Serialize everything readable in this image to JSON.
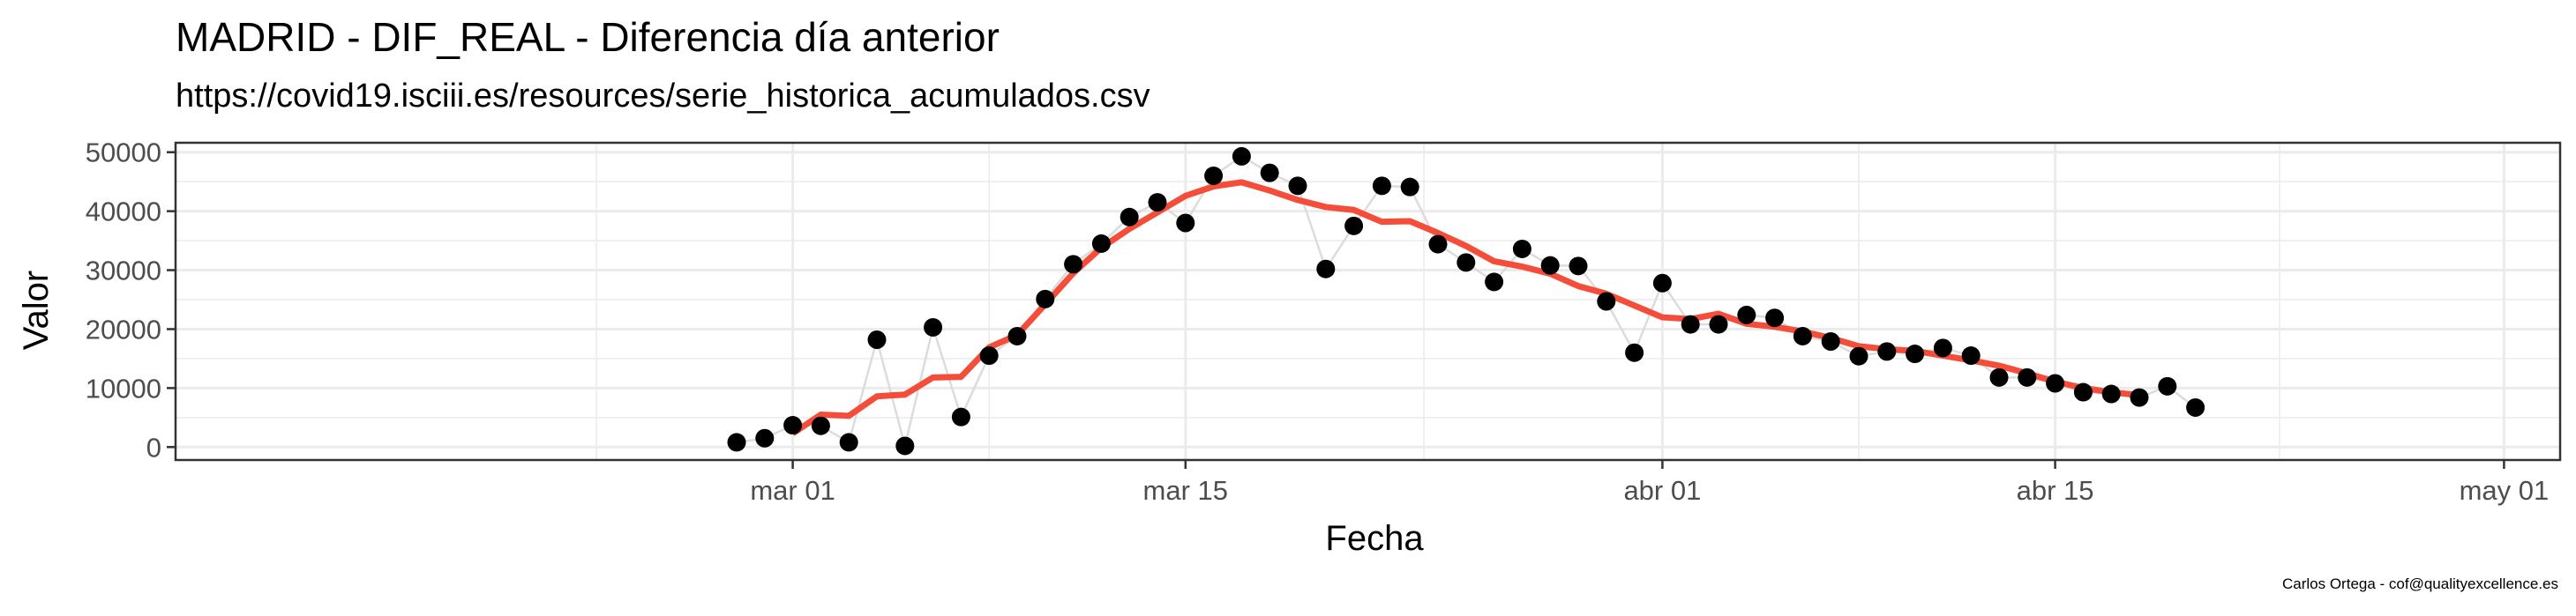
{
  "title": "MADRID - DIF_REAL - Diferencia día anterior",
  "subtitle": "https://covid19.isciii.es/resources/serie_historica_acumulados.csv",
  "caption": "Carlos Ortega - cof@qualityexcellence.es",
  "colors": {
    "points": "#000000",
    "connector": "#dcdcdc",
    "smooth": "#f44e3b",
    "grid": "#ebebeb",
    "panel_border": "#333333"
  },
  "chart_data": {
    "type": "line",
    "xlabel": "Fecha",
    "ylabel": "Valor",
    "x_ticks": [
      {
        "date": "2020-03-01",
        "label": "mar 01"
      },
      {
        "date": "2020-03-15",
        "label": "mar 15"
      },
      {
        "date": "2020-04-01",
        "label": "abr 01"
      },
      {
        "date": "2020-04-15",
        "label": "abr 15"
      },
      {
        "date": "2020-05-01",
        "label": "may 01"
      }
    ],
    "xlim": [
      "2020-02-08",
      "2020-05-03"
    ],
    "y_ticks": [
      {
        "value": 0,
        "label": "0"
      },
      {
        "value": 10000,
        "label": "10000"
      },
      {
        "value": 20000,
        "label": "20000"
      },
      {
        "value": 30000,
        "label": "30000"
      },
      {
        "value": 40000,
        "label": "40000"
      },
      {
        "value": 50000,
        "label": "50000"
      }
    ],
    "ylim": [
      -2200,
      51600
    ],
    "grid": true,
    "series": [
      {
        "kind": "points",
        "points": [
          [
            "2020-02-28",
            800
          ],
          [
            "2020-02-29",
            1500
          ],
          [
            "2020-03-01",
            3700
          ],
          [
            "2020-03-02",
            3600
          ],
          [
            "2020-03-03",
            800
          ],
          [
            "2020-03-04",
            18200
          ],
          [
            "2020-03-05",
            200
          ],
          [
            "2020-03-06",
            20300
          ],
          [
            "2020-03-07",
            5100
          ],
          [
            "2020-03-08",
            15500
          ],
          [
            "2020-03-09",
            18800
          ],
          [
            "2020-03-10",
            25100
          ],
          [
            "2020-03-11",
            31000
          ],
          [
            "2020-03-12",
            34500
          ],
          [
            "2020-03-13",
            39000
          ],
          [
            "2020-03-14",
            41500
          ],
          [
            "2020-03-15",
            38000
          ],
          [
            "2020-03-16",
            46000
          ],
          [
            "2020-03-17",
            49300
          ],
          [
            "2020-03-18",
            46500
          ],
          [
            "2020-03-19",
            44300
          ],
          [
            "2020-03-20",
            30200
          ],
          [
            "2020-03-21",
            37500
          ],
          [
            "2020-03-22",
            44300
          ],
          [
            "2020-03-23",
            44100
          ],
          [
            "2020-03-24",
            34400
          ],
          [
            "2020-03-25",
            31300
          ],
          [
            "2020-03-26",
            28000
          ],
          [
            "2020-03-27",
            33600
          ],
          [
            "2020-03-28",
            30800
          ],
          [
            "2020-03-29",
            30700
          ],
          [
            "2020-03-30",
            24700
          ],
          [
            "2020-03-31",
            16000
          ],
          [
            "2020-04-01",
            27800
          ],
          [
            "2020-04-02",
            20800
          ],
          [
            "2020-04-03",
            20800
          ],
          [
            "2020-04-04",
            22400
          ],
          [
            "2020-04-05",
            21900
          ],
          [
            "2020-04-06",
            18800
          ],
          [
            "2020-04-07",
            17900
          ],
          [
            "2020-04-08",
            15400
          ],
          [
            "2020-04-09",
            16200
          ],
          [
            "2020-04-10",
            15800
          ],
          [
            "2020-04-11",
            16800
          ],
          [
            "2020-04-12",
            15500
          ],
          [
            "2020-04-13",
            11800
          ],
          [
            "2020-04-14",
            11800
          ],
          [
            "2020-04-15",
            10800
          ],
          [
            "2020-04-16",
            9300
          ],
          [
            "2020-04-17",
            9000
          ],
          [
            "2020-04-18",
            8400
          ],
          [
            "2020-04-19",
            10300
          ],
          [
            "2020-04-20",
            6700
          ]
        ]
      },
      {
        "kind": "smooth",
        "points": [
          [
            "2020-03-01",
            2300
          ],
          [
            "2020-03-02",
            5500
          ],
          [
            "2020-03-03",
            5300
          ],
          [
            "2020-03-04",
            8600
          ],
          [
            "2020-03-05",
            8900
          ],
          [
            "2020-03-06",
            11800
          ],
          [
            "2020-03-07",
            11900
          ],
          [
            "2020-03-08",
            16900
          ],
          [
            "2020-03-09",
            19000
          ],
          [
            "2020-03-10",
            24200
          ],
          [
            "2020-03-11",
            29500
          ],
          [
            "2020-03-12",
            33800
          ],
          [
            "2020-03-13",
            37000
          ],
          [
            "2020-03-14",
            39800
          ],
          [
            "2020-03-15",
            42600
          ],
          [
            "2020-03-16",
            44200
          ],
          [
            "2020-03-17",
            44900
          ],
          [
            "2020-03-18",
            43500
          ],
          [
            "2020-03-19",
            41900
          ],
          [
            "2020-03-20",
            40700
          ],
          [
            "2020-03-21",
            40200
          ],
          [
            "2020-03-22",
            38200
          ],
          [
            "2020-03-23",
            38300
          ],
          [
            "2020-03-24",
            36300
          ],
          [
            "2020-03-25",
            34100
          ],
          [
            "2020-03-26",
            31500
          ],
          [
            "2020-03-27",
            30600
          ],
          [
            "2020-03-28",
            29400
          ],
          [
            "2020-03-29",
            27300
          ],
          [
            "2020-03-30",
            26000
          ],
          [
            "2020-03-31",
            24000
          ],
          [
            "2020-04-01",
            22000
          ],
          [
            "2020-04-02",
            21700
          ],
          [
            "2020-04-03",
            22600
          ],
          [
            "2020-04-04",
            20900
          ],
          [
            "2020-04-05",
            20400
          ],
          [
            "2020-04-06",
            19600
          ],
          [
            "2020-04-07",
            18500
          ],
          [
            "2020-04-08",
            17100
          ],
          [
            "2020-04-09",
            16600
          ],
          [
            "2020-04-10",
            16300
          ],
          [
            "2020-04-11",
            15500
          ],
          [
            "2020-04-12",
            14700
          ],
          [
            "2020-04-13",
            13800
          ],
          [
            "2020-04-14",
            12500
          ],
          [
            "2020-04-15",
            11100
          ],
          [
            "2020-04-16",
            10000
          ],
          [
            "2020-04-17",
            9300
          ],
          [
            "2020-04-18",
            8800
          ]
        ]
      }
    ]
  }
}
